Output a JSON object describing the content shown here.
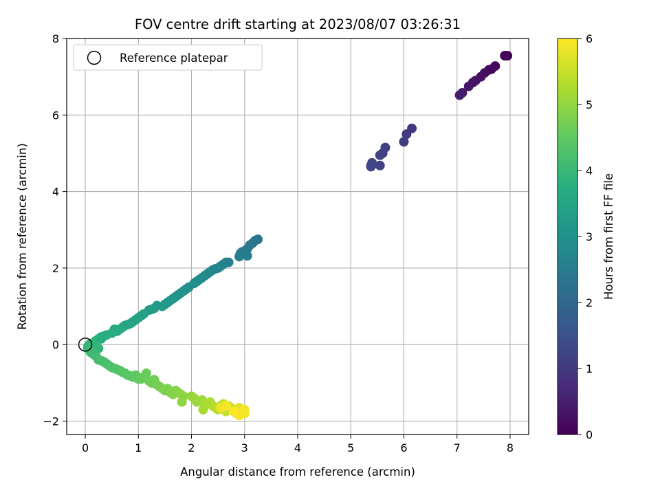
{
  "chart_data": {
    "type": "scatter",
    "title": "FOV centre drift starting at 2023/08/07 03:26:31",
    "xlabel": "Angular distance from reference (arcmin)",
    "ylabel": "Rotation from reference (arcmin)",
    "xlim": [
      -0.35,
      8.35
    ],
    "ylim": [
      -2.35,
      8.0
    ],
    "xticks": [
      0,
      1,
      2,
      3,
      4,
      5,
      6,
      7,
      8
    ],
    "yticks": [
      -2,
      0,
      2,
      4,
      6,
      8
    ],
    "grid": true,
    "legend": {
      "placement": "upper-left",
      "entries": [
        "Reference platepar"
      ]
    },
    "reference_point": {
      "x": 0,
      "y": 0
    },
    "colorbar": {
      "label": "Hours from first FF file",
      "range": [
        0,
        6
      ],
      "ticks": [
        0,
        1,
        2,
        3,
        4,
        5,
        6
      ],
      "colormap": "viridis"
    },
    "series": [
      {
        "x": [
          7.95,
          7.9,
          7.72,
          7.65,
          7.6,
          7.52,
          7.45,
          7.35,
          7.3,
          7.22,
          7.1,
          7.05
        ],
        "y": [
          7.55,
          7.55,
          7.28,
          7.2,
          7.18,
          7.1,
          7.0,
          6.9,
          6.85,
          6.75,
          6.58,
          6.52
        ],
        "hours": [
          0.0,
          0.03,
          0.08,
          0.12,
          0.15,
          0.2,
          0.25,
          0.3,
          0.34,
          0.38,
          0.45,
          0.5
        ]
      },
      {
        "x": [
          6.15,
          6.05,
          6.0,
          5.65,
          5.6,
          5.55,
          5.55,
          5.4,
          5.38,
          5.38
        ],
        "y": [
          5.65,
          5.5,
          5.3,
          5.15,
          5.0,
          4.95,
          4.68,
          4.75,
          4.68,
          4.65
        ],
        "hours": [
          0.95,
          1.0,
          1.05,
          1.1,
          1.15,
          1.18,
          1.2,
          1.22,
          1.25,
          1.28
        ]
      },
      {
        "x": [
          3.25,
          3.2,
          3.15,
          3.1,
          3.05,
          3.0,
          2.95,
          2.92,
          2.9,
          3.05,
          2.7,
          2.65,
          2.6,
          2.55,
          2.5,
          2.45,
          2.4,
          2.35,
          2.3,
          2.25,
          2.2,
          2.15,
          2.1,
          2.05,
          1.95,
          1.9,
          1.85,
          1.8,
          1.75,
          1.7,
          1.65,
          1.6,
          1.55,
          1.5,
          1.45,
          1.35,
          1.3,
          1.25,
          1.2,
          1.1,
          1.05,
          1.0,
          0.95,
          0.9,
          0.85,
          0.8,
          0.75,
          0.7,
          0.65,
          0.6,
          0.55,
          0.5,
          0.4,
          0.35,
          0.3,
          0.25,
          0.2,
          0.15,
          0.1,
          0.08,
          0.05,
          0.05,
          0.1,
          0.15,
          0.2,
          0.25,
          0.3
        ],
        "y": [
          2.75,
          2.72,
          2.65,
          2.6,
          2.5,
          2.45,
          2.42,
          2.38,
          2.3,
          2.32,
          2.15,
          2.15,
          2.1,
          2.05,
          2.0,
          1.98,
          1.95,
          1.9,
          1.85,
          1.8,
          1.75,
          1.7,
          1.65,
          1.6,
          1.5,
          1.45,
          1.4,
          1.35,
          1.3,
          1.25,
          1.2,
          1.15,
          1.1,
          1.05,
          1.0,
          1.02,
          0.95,
          0.92,
          0.9,
          0.8,
          0.75,
          0.7,
          0.65,
          0.6,
          0.55,
          0.52,
          0.5,
          0.45,
          0.4,
          0.35,
          0.4,
          0.3,
          0.25,
          0.22,
          0.2,
          0.15,
          0.1,
          0.05,
          0.02,
          0.0,
          -0.05,
          -0.1,
          -0.12,
          -0.15,
          -0.05,
          -0.1,
          0.15
        ],
        "hours": [
          2.3,
          2.32,
          2.35,
          2.38,
          2.42,
          2.45,
          2.48,
          2.5,
          2.52,
          2.5,
          2.58,
          2.6,
          2.62,
          2.65,
          2.68,
          2.7,
          2.72,
          2.75,
          2.78,
          2.8,
          2.83,
          2.85,
          2.88,
          2.9,
          2.95,
          2.98,
          3.0,
          3.02,
          3.05,
          3.08,
          3.1,
          3.12,
          3.15,
          3.18,
          3.2,
          3.25,
          3.28,
          3.3,
          3.32,
          3.38,
          3.4,
          3.42,
          3.45,
          3.48,
          3.5,
          3.52,
          3.55,
          3.58,
          3.6,
          3.62,
          3.65,
          3.68,
          3.72,
          3.75,
          3.78,
          3.8,
          3.83,
          3.85,
          3.88,
          3.9,
          3.93,
          3.95,
          3.97,
          3.98,
          3.92,
          3.94,
          3.75
        ]
      },
      {
        "x": [
          0.1,
          0.15,
          0.2,
          0.25,
          0.3,
          0.35,
          0.4,
          0.45,
          0.5,
          0.55,
          0.6,
          0.65,
          0.7,
          0.75,
          0.8,
          0.85,
          0.9,
          0.95,
          1.0,
          1.05,
          1.1,
          1.15,
          1.2,
          1.25,
          1.3,
          1.35,
          1.4,
          1.45,
          1.5,
          1.55,
          1.6,
          1.65,
          1.7,
          1.75,
          1.8,
          1.85,
          1.82,
          2.0,
          2.05,
          2.1,
          2.2,
          2.25,
          2.22,
          2.3,
          2.35,
          2.4,
          2.45,
          2.5,
          2.55,
          2.6,
          2.62,
          2.65,
          2.7,
          2.75,
          2.8,
          2.85,
          2.9,
          2.95,
          3.0,
          3.0,
          2.9,
          2.8,
          2.65,
          2.55
        ],
        "y": [
          -0.2,
          -0.25,
          -0.3,
          -0.4,
          -0.42,
          -0.45,
          -0.5,
          -0.55,
          -0.6,
          -0.62,
          -0.65,
          -0.68,
          -0.72,
          -0.75,
          -0.8,
          -0.82,
          -0.85,
          -0.8,
          -0.9,
          -0.9,
          -0.85,
          -0.75,
          -0.95,
          -1.0,
          -0.92,
          -1.05,
          -1.1,
          -1.15,
          -1.2,
          -1.15,
          -1.25,
          -1.3,
          -1.2,
          -1.25,
          -1.3,
          -1.35,
          -1.5,
          -1.35,
          -1.4,
          -1.5,
          -1.45,
          -1.6,
          -1.7,
          -1.55,
          -1.5,
          -1.6,
          -1.65,
          -1.7,
          -1.6,
          -1.55,
          -1.7,
          -1.75,
          -1.6,
          -1.65,
          -1.7,
          -1.8,
          -1.65,
          -1.75,
          -1.8,
          -1.7,
          -1.85,
          -1.75,
          -1.6,
          -1.65
        ],
        "hours": [
          4.05,
          4.08,
          4.1,
          4.15,
          4.18,
          4.2,
          4.22,
          4.25,
          4.28,
          4.3,
          4.33,
          4.35,
          4.38,
          4.4,
          4.42,
          4.45,
          4.48,
          4.5,
          4.52,
          4.55,
          4.58,
          4.6,
          4.62,
          4.65,
          4.68,
          4.7,
          4.72,
          4.75,
          4.78,
          4.8,
          4.82,
          4.85,
          4.88,
          4.9,
          4.92,
          4.95,
          4.97,
          5.0,
          5.05,
          5.08,
          5.12,
          5.15,
          5.18,
          5.2,
          5.25,
          5.28,
          5.32,
          5.35,
          5.4,
          5.45,
          5.48,
          5.5,
          5.55,
          5.6,
          5.65,
          5.7,
          5.75,
          5.8,
          5.85,
          5.9,
          5.95,
          5.98,
          5.92,
          5.88
        ]
      }
    ]
  }
}
